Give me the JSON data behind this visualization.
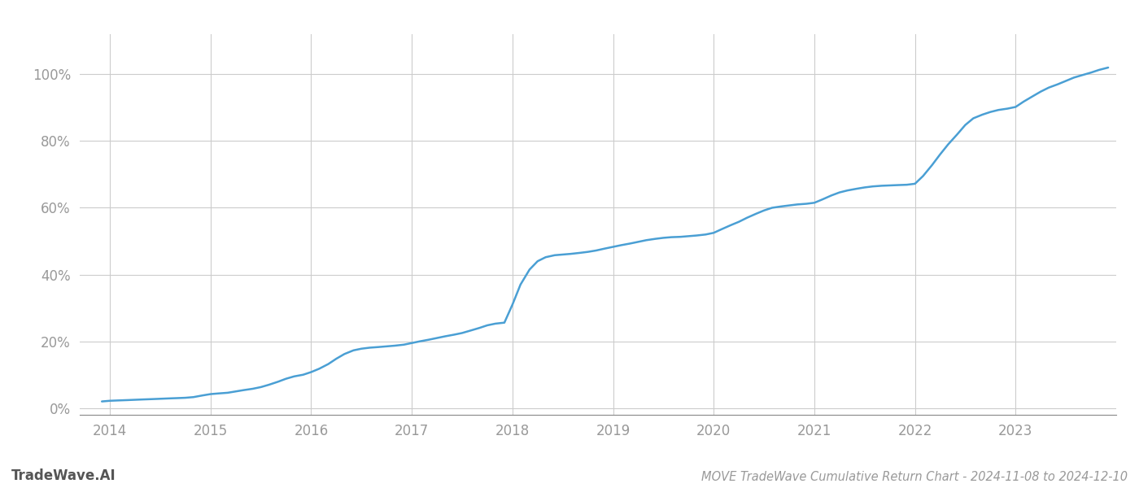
{
  "title": "MOVE TradeWave Cumulative Return Chart - 2024-11-08 to 2024-12-10",
  "watermark": "TradeWave.AI",
  "line_color": "#4a9fd4",
  "line_width": 1.8,
  "background_color": "#ffffff",
  "grid_color": "#cccccc",
  "x_years": [
    2014,
    2015,
    2016,
    2017,
    2018,
    2019,
    2020,
    2021,
    2022,
    2023
  ],
  "x_data": [
    2013.92,
    2014.0,
    2014.08,
    2014.17,
    2014.25,
    2014.33,
    2014.42,
    2014.5,
    2014.58,
    2014.67,
    2014.75,
    2014.83,
    2014.92,
    2015.0,
    2015.08,
    2015.17,
    2015.25,
    2015.33,
    2015.42,
    2015.5,
    2015.58,
    2015.67,
    2015.75,
    2015.83,
    2015.92,
    2016.0,
    2016.08,
    2016.17,
    2016.25,
    2016.33,
    2016.42,
    2016.5,
    2016.58,
    2016.67,
    2016.75,
    2016.83,
    2016.92,
    2017.0,
    2017.08,
    2017.17,
    2017.25,
    2017.33,
    2017.42,
    2017.5,
    2017.58,
    2017.67,
    2017.75,
    2017.83,
    2017.92,
    2018.0,
    2018.08,
    2018.17,
    2018.25,
    2018.33,
    2018.42,
    2018.5,
    2018.58,
    2018.67,
    2018.75,
    2018.83,
    2018.92,
    2019.0,
    2019.08,
    2019.17,
    2019.25,
    2019.33,
    2019.42,
    2019.5,
    2019.58,
    2019.67,
    2019.75,
    2019.83,
    2019.92,
    2020.0,
    2020.08,
    2020.17,
    2020.25,
    2020.33,
    2020.42,
    2020.5,
    2020.58,
    2020.67,
    2020.75,
    2020.83,
    2020.92,
    2021.0,
    2021.08,
    2021.17,
    2021.25,
    2021.33,
    2021.42,
    2021.5,
    2021.58,
    2021.67,
    2021.75,
    2021.83,
    2021.92,
    2022.0,
    2022.08,
    2022.17,
    2022.25,
    2022.33,
    2022.42,
    2022.5,
    2022.58,
    2022.67,
    2022.75,
    2022.83,
    2022.92,
    2023.0,
    2023.08,
    2023.17,
    2023.25,
    2023.33,
    2023.42,
    2023.5,
    2023.58,
    2023.67,
    2023.75,
    2023.83,
    2023.92
  ],
  "y_data": [
    0.02,
    0.022,
    0.023,
    0.024,
    0.025,
    0.026,
    0.027,
    0.028,
    0.029,
    0.03,
    0.031,
    0.033,
    0.038,
    0.042,
    0.044,
    0.046,
    0.05,
    0.054,
    0.058,
    0.063,
    0.07,
    0.079,
    0.088,
    0.095,
    0.1,
    0.108,
    0.118,
    0.132,
    0.148,
    0.162,
    0.173,
    0.178,
    0.181,
    0.183,
    0.185,
    0.187,
    0.19,
    0.195,
    0.2,
    0.205,
    0.21,
    0.215,
    0.22,
    0.225,
    0.232,
    0.24,
    0.248,
    0.253,
    0.256,
    0.31,
    0.37,
    0.415,
    0.44,
    0.452,
    0.458,
    0.46,
    0.462,
    0.465,
    0.468,
    0.472,
    0.478,
    0.483,
    0.488,
    0.493,
    0.498,
    0.503,
    0.507,
    0.51,
    0.512,
    0.513,
    0.515,
    0.517,
    0.52,
    0.525,
    0.536,
    0.548,
    0.558,
    0.57,
    0.582,
    0.592,
    0.6,
    0.604,
    0.607,
    0.61,
    0.612,
    0.615,
    0.625,
    0.637,
    0.646,
    0.652,
    0.657,
    0.661,
    0.664,
    0.666,
    0.667,
    0.668,
    0.669,
    0.672,
    0.695,
    0.728,
    0.76,
    0.79,
    0.82,
    0.848,
    0.868,
    0.879,
    0.887,
    0.893,
    0.897,
    0.902,
    0.918,
    0.934,
    0.948,
    0.96,
    0.97,
    0.98,
    0.99,
    0.998,
    1.005,
    1.013,
    1.02
  ],
  "ylim": [
    -0.02,
    1.12
  ],
  "xlim": [
    2013.7,
    2024.0
  ],
  "yticks": [
    0.0,
    0.2,
    0.4,
    0.6,
    0.8,
    1.0
  ],
  "ytick_labels": [
    "0%",
    "20%",
    "40%",
    "60%",
    "80%",
    "100%"
  ],
  "tick_color": "#999999",
  "axis_color": "#cccccc",
  "title_fontsize": 10.5,
  "tick_fontsize": 12,
  "watermark_fontsize": 12
}
